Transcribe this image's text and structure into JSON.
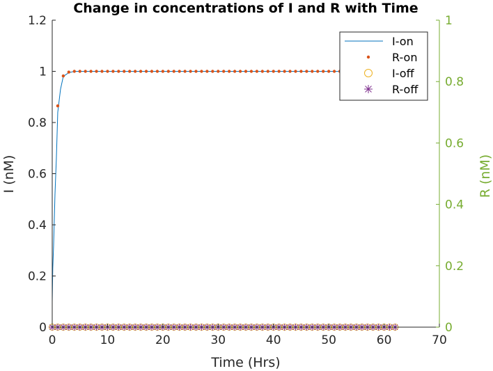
{
  "chart_data": {
    "type": "line",
    "title": "Change in concentrations of I and R with Time",
    "xlabel": "Time (Hrs)",
    "ylabel": "I (nM)",
    "ylabel_right": "R (nM)",
    "xlim": [
      0,
      70
    ],
    "ylim": [
      0,
      1.2
    ],
    "ylim_right": [
      0,
      1
    ],
    "xticks": [
      0,
      10,
      20,
      30,
      40,
      50,
      60,
      70
    ],
    "yticks": [
      0,
      0.2,
      0.4,
      0.6,
      0.8,
      1,
      1.2
    ],
    "yticks_right": [
      0,
      0.2,
      0.4,
      0.6,
      0.8,
      1
    ],
    "ytick_labels": [
      "0",
      "0.2",
      "0.4",
      "0.6",
      "0.8",
      "1",
      "1.2"
    ],
    "ytick_labels_right": [
      "0",
      "0.2",
      "0.4",
      "0.6",
      "0.8",
      "1"
    ],
    "xtick_labels": [
      "0",
      "10",
      "20",
      "30",
      "40",
      "50",
      "60",
      "70"
    ],
    "legend_position": "top-right",
    "grid": false,
    "series": [
      {
        "name": "I-on",
        "style": "line",
        "axis": "left",
        "color": "#0072bd",
        "x": [
          0,
          0.1,
          0.25,
          0.5,
          0.75,
          1,
          1.5,
          2,
          3,
          4,
          5,
          10,
          20,
          30,
          40,
          50,
          62
        ],
        "y": [
          0.1,
          0.23,
          0.32,
          0.52,
          0.66,
          0.84,
          0.93,
          0.98,
          0.995,
          1,
          1,
          1,
          1,
          1,
          1,
          1,
          1
        ]
      },
      {
        "name": "R-on",
        "style": "dots",
        "axis": "left",
        "color": "#d95319",
        "x": [
          1,
          2,
          3,
          4,
          5,
          6,
          7,
          8,
          9,
          10,
          11,
          12,
          13,
          14,
          15,
          16,
          17,
          18,
          19,
          20,
          21,
          22,
          23,
          24,
          25,
          26,
          27,
          28,
          29,
          30,
          31,
          32,
          33,
          34,
          35,
          36,
          37,
          38,
          39,
          40,
          41,
          42,
          43,
          44,
          45,
          46,
          47,
          48,
          49,
          50,
          51,
          52
        ],
        "y": [
          0.865,
          0.982,
          0.997,
          1,
          1,
          1,
          1,
          1,
          1,
          1,
          1,
          1,
          1,
          1,
          1,
          1,
          1,
          1,
          1,
          1,
          1,
          1,
          1,
          1,
          1,
          1,
          1,
          1,
          1,
          1,
          1,
          1,
          1,
          1,
          1,
          1,
          1,
          1,
          1,
          1,
          1,
          1,
          1,
          1,
          1,
          1,
          1,
          1,
          1,
          1,
          1,
          1
        ]
      },
      {
        "name": "I-off",
        "style": "circles",
        "axis": "right",
        "color": "#edb120",
        "x": [
          0,
          1,
          2,
          3,
          4,
          5,
          6,
          7,
          8,
          9,
          10,
          11,
          12,
          13,
          14,
          15,
          16,
          17,
          18,
          19,
          20,
          21,
          22,
          23,
          24,
          25,
          26,
          27,
          28,
          29,
          30,
          31,
          32,
          33,
          34,
          35,
          36,
          37,
          38,
          39,
          40,
          41,
          42,
          43,
          44,
          45,
          46,
          47,
          48,
          49,
          50,
          51,
          52,
          53,
          54,
          55,
          56,
          57,
          58,
          59,
          60,
          61,
          62
        ],
        "y": [
          0,
          0,
          0,
          0,
          0,
          0,
          0,
          0,
          0,
          0,
          0,
          0,
          0,
          0,
          0,
          0,
          0,
          0,
          0,
          0,
          0,
          0,
          0,
          0,
          0,
          0,
          0,
          0,
          0,
          0,
          0,
          0,
          0,
          0,
          0,
          0,
          0,
          0,
          0,
          0,
          0,
          0,
          0,
          0,
          0,
          0,
          0,
          0,
          0,
          0,
          0,
          0,
          0,
          0,
          0,
          0,
          0,
          0,
          0,
          0,
          0,
          0,
          0
        ]
      },
      {
        "name": "R-off",
        "style": "asterisks",
        "axis": "right",
        "color": "#7e2f8e",
        "x": [
          0,
          1,
          2,
          3,
          4,
          5,
          6,
          7,
          8,
          9,
          10,
          11,
          12,
          13,
          14,
          15,
          16,
          17,
          18,
          19,
          20,
          21,
          22,
          23,
          24,
          25,
          26,
          27,
          28,
          29,
          30,
          31,
          32,
          33,
          34,
          35,
          36,
          37,
          38,
          39,
          40,
          41,
          42,
          43,
          44,
          45,
          46,
          47,
          48,
          49,
          50,
          51,
          52,
          53,
          54,
          55,
          56,
          57,
          58,
          59,
          60,
          61,
          62
        ],
        "y": [
          0,
          0,
          0,
          0,
          0,
          0,
          0,
          0,
          0,
          0,
          0,
          0,
          0,
          0,
          0,
          0,
          0,
          0,
          0,
          0,
          0,
          0,
          0,
          0,
          0,
          0,
          0,
          0,
          0,
          0,
          0,
          0,
          0,
          0,
          0,
          0,
          0,
          0,
          0,
          0,
          0,
          0,
          0,
          0,
          0,
          0,
          0,
          0,
          0,
          0,
          0,
          0,
          0,
          0,
          0,
          0,
          0,
          0,
          0,
          0,
          0,
          0,
          0
        ]
      }
    ]
  }
}
